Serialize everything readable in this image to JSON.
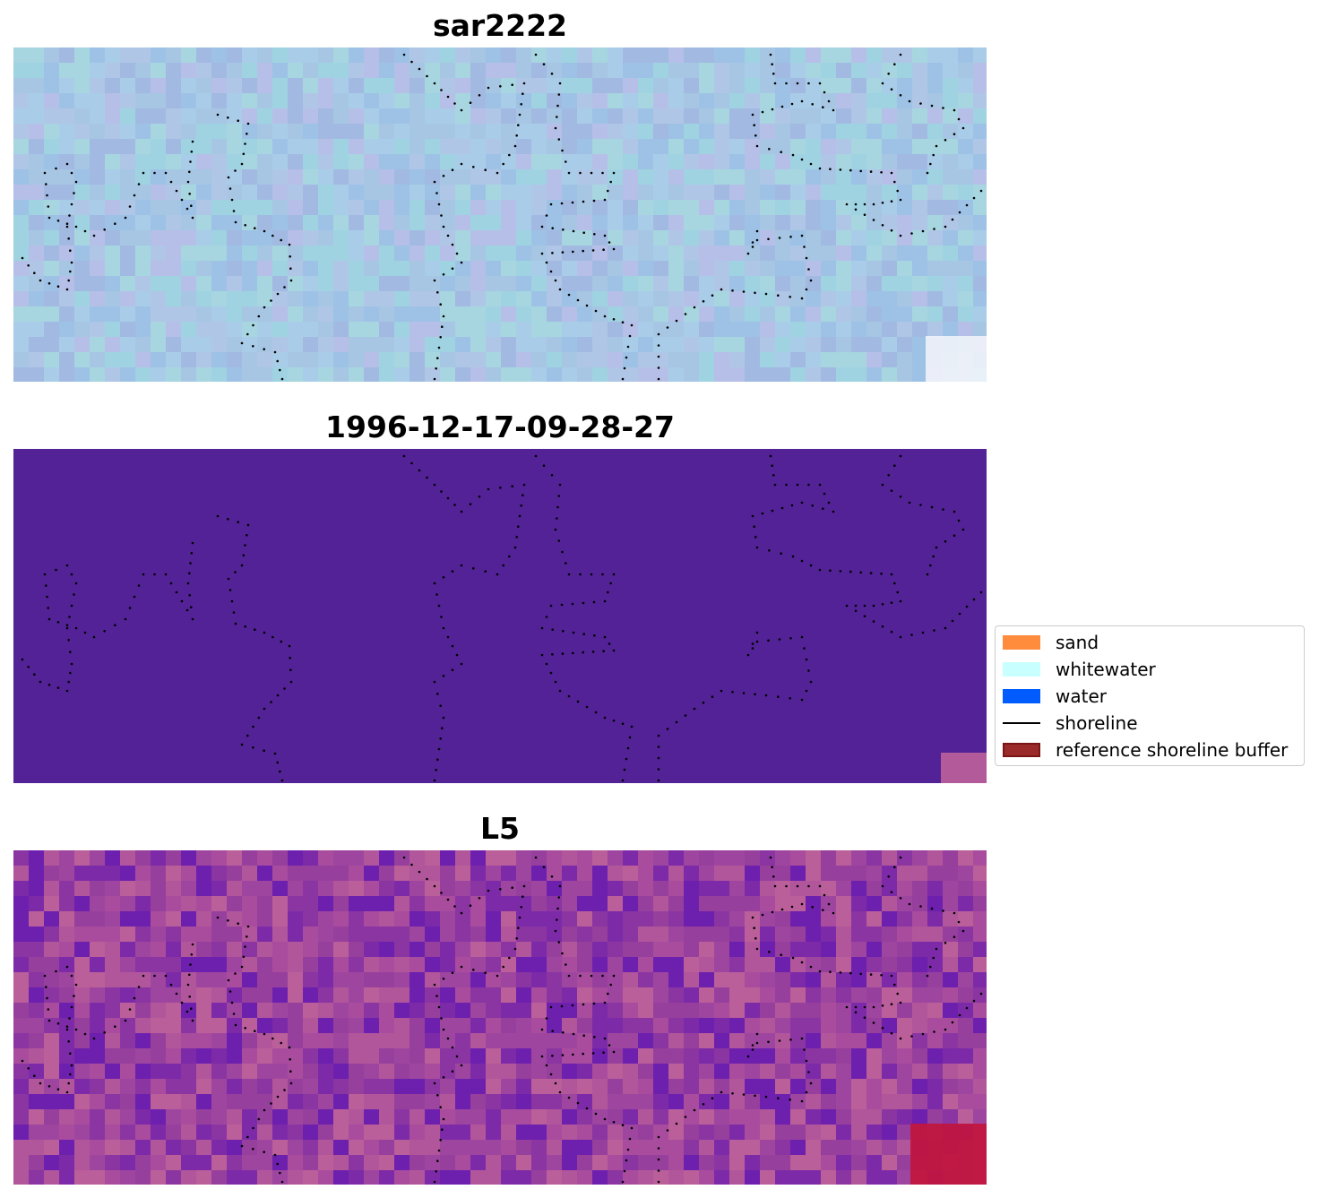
{
  "panels": [
    {
      "title": "sar2222",
      "base_colors": [
        "#a6c6e4",
        "#9dc2e6",
        "#a9cde8",
        "#a2b9e2",
        "#b0c6e6",
        "#9fd3e2",
        "#b6bfe8",
        "#a7d6e0"
      ],
      "corner_color": "#f4f6fa"
    },
    {
      "title": "1996-12-17-09-28-27",
      "base_colors": [
        "#522296"
      ],
      "corner_color": "#b85e9a"
    },
    {
      "title": "L5",
      "base_colors": [
        "#973f9d",
        "#a94c9e",
        "#8a35a2",
        "#b2569c",
        "#7d2aa8",
        "#9e469f",
        "#bb5f9a",
        "#6d1fae"
      ],
      "corner_color": "#c0163f"
    }
  ],
  "legend": {
    "items": [
      {
        "label": "sand",
        "color": "#ff8c3c",
        "kind": "patch"
      },
      {
        "label": "whitewater",
        "color": "#c8ffff",
        "kind": "patch"
      },
      {
        "label": "water",
        "color": "#005cff",
        "kind": "patch"
      },
      {
        "label": "shoreline",
        "color": "#000000",
        "kind": "line"
      },
      {
        "label": "reference shoreline buffer",
        "color": "#9b2a2a",
        "kind": "patch"
      }
    ]
  }
}
